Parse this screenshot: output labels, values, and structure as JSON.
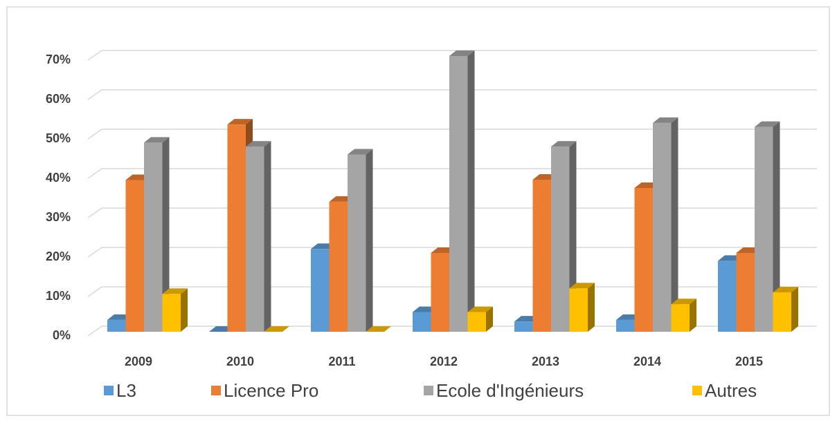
{
  "chart_data": {
    "type": "bar3d",
    "categories": [
      "2009",
      "2010",
      "2011",
      "2012",
      "2013",
      "2014",
      "2015"
    ],
    "series": [
      {
        "name": "L3",
        "color": "#5b9bd5",
        "values": [
          3,
          0,
          21,
          5,
          2.6,
          3,
          18
        ]
      },
      {
        "name": "Licence Pro",
        "color": "#ed7d31",
        "values": [
          38.5,
          52.6,
          33,
          20,
          38.6,
          36.5,
          20
        ]
      },
      {
        "name": "Ecole d'Ingénieurs",
        "color": "#a5a5a5",
        "values": [
          48,
          47,
          45,
          70,
          47,
          53,
          52
        ]
      },
      {
        "name": "Autres",
        "color": "#ffc000",
        "values": [
          9.6,
          0,
          0,
          5,
          11,
          7,
          10
        ]
      }
    ],
    "ylim": [
      0,
      70
    ],
    "yticks": [
      {
        "value": 0,
        "label": "0%"
      },
      {
        "value": 10,
        "label": "10%"
      },
      {
        "value": 20,
        "label": "20%"
      },
      {
        "value": 30,
        "label": "30%"
      },
      {
        "value": 40,
        "label": "40%"
      },
      {
        "value": 50,
        "label": "50%"
      },
      {
        "value": 60,
        "label": "60%"
      },
      {
        "value": 70,
        "label": "70%"
      }
    ],
    "grid": true,
    "legend": "bottom"
  }
}
